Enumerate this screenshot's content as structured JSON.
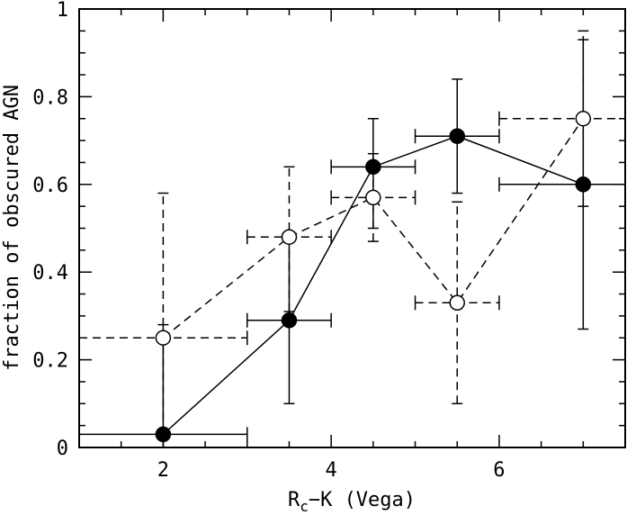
{
  "chart_data": {
    "type": "scatter",
    "title": "",
    "xlabel_main": "R",
    "xlabel_sub": "c",
    "xlabel_rest": "−K (Vega)",
    "ylabel": "fraction of obscured AGN",
    "xlim": [
      1,
      7.5
    ],
    "ylim": [
      0,
      1
    ],
    "xticks": [
      2,
      4,
      6
    ],
    "xtick_labels": [
      "2",
      "4",
      "6"
    ],
    "yticks": [
      0,
      0.2,
      0.4,
      0.6,
      0.8,
      1
    ],
    "ytick_labels": [
      "0",
      "0.2",
      "0.4",
      "0.6",
      "0.8",
      "1"
    ],
    "series": [
      {
        "name": "filled",
        "marker": "filled-circle",
        "line": "solid",
        "points": [
          {
            "x": 2.0,
            "y": 0.03,
            "xlo": 1.0,
            "xhi": 3.0,
            "ylo": 0.0,
            "yhi": 0.28
          },
          {
            "x": 3.5,
            "y": 0.29,
            "xlo": 3.0,
            "xhi": 4.0,
            "ylo": 0.1,
            "yhi": 0.48
          },
          {
            "x": 4.5,
            "y": 0.64,
            "xlo": 4.0,
            "xhi": 5.0,
            "ylo": 0.5,
            "yhi": 0.75
          },
          {
            "x": 5.5,
            "y": 0.71,
            "xlo": 5.0,
            "xhi": 6.0,
            "ylo": 0.58,
            "yhi": 0.84
          },
          {
            "x": 7.0,
            "y": 0.6,
            "xlo": 6.0,
            "xhi": 7.5,
            "ylo": 0.27,
            "yhi": 0.93
          }
        ]
      },
      {
        "name": "open",
        "marker": "open-circle",
        "line": "dashed",
        "points": [
          {
            "x": 2.0,
            "y": 0.25,
            "xlo": 1.0,
            "xhi": 3.0,
            "ylo": 0.0,
            "yhi": 0.58
          },
          {
            "x": 3.5,
            "y": 0.48,
            "xlo": 3.0,
            "xhi": 4.0,
            "ylo": 0.31,
            "yhi": 0.64
          },
          {
            "x": 4.5,
            "y": 0.57,
            "xlo": 4.0,
            "xhi": 5.0,
            "ylo": 0.47,
            "yhi": 0.67
          },
          {
            "x": 5.5,
            "y": 0.33,
            "xlo": 5.0,
            "xhi": 6.0,
            "ylo": 0.1,
            "yhi": 0.56
          },
          {
            "x": 7.0,
            "y": 0.75,
            "xlo": 6.0,
            "xhi": 7.5,
            "ylo": 0.55,
            "yhi": 0.95
          }
        ]
      }
    ]
  }
}
